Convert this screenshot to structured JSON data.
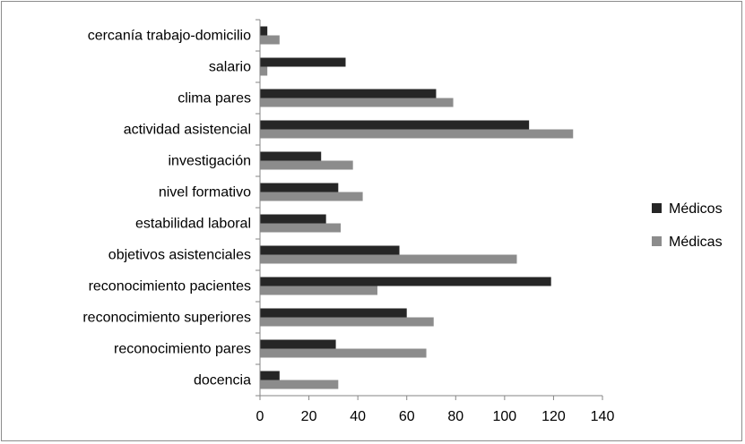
{
  "chart_data": {
    "type": "bar",
    "orientation": "horizontal",
    "categories": [
      "cercanía trabajo-domicilio",
      "salario",
      "clima pares",
      "actividad asistencial",
      "investigación",
      "nivel formativo",
      "estabilidad laboral",
      "objetivos asistenciales",
      "reconocimiento pacientes",
      "reconocimiento superiores",
      "reconocimiento pares",
      "docencia"
    ],
    "series": [
      {
        "name": "Médicos",
        "color": "#262626",
        "values": [
          3,
          35,
          72,
          110,
          25,
          32,
          27,
          57,
          119,
          60,
          31,
          8
        ]
      },
      {
        "name": "Médicas",
        "color": "#8c8c8c",
        "values": [
          8,
          3,
          79,
          128,
          38,
          42,
          33,
          105,
          48,
          71,
          68,
          32
        ]
      }
    ],
    "xlim": [
      0,
      140
    ],
    "xticks": [
      "0",
      "20",
      "40",
      "60",
      "80",
      "100",
      "120",
      "140"
    ],
    "grid": false,
    "legend_position": "right"
  }
}
